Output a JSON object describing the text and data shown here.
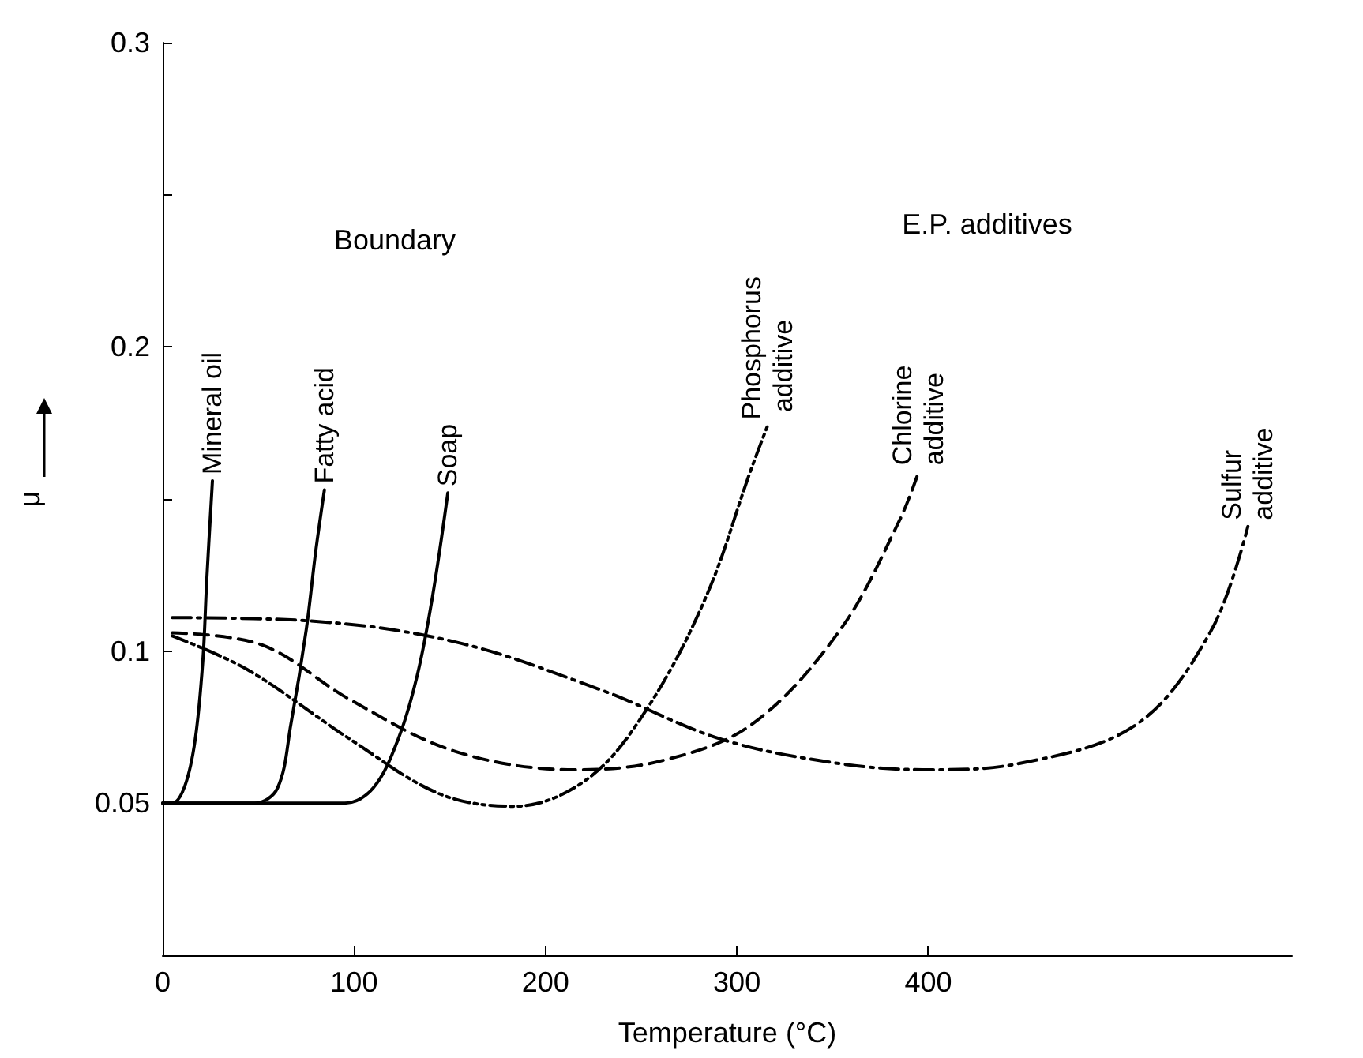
{
  "chart_data": {
    "type": "line",
    "xlabel": "Temperature (°C)",
    "ylabel": "μ",
    "xlim": [
      0,
      590
    ],
    "xticks": [
      0,
      100,
      200,
      300,
      400
    ],
    "ylim": [
      0,
      0.3
    ],
    "yticks": [
      0.05,
      0.1,
      {
        "value": 0.15,
        "label": null
      },
      0.2,
      {
        "value": 0.25,
        "label": null
      },
      0.3
    ],
    "grid": false,
    "legend": false,
    "marker": "none",
    "annotations": [
      "Boundary",
      "E.P. additives"
    ],
    "series": [
      {
        "name": "Mineral oil",
        "color": "#000000",
        "line_style": "solid",
        "x": [
          0,
          5,
          11.6,
          17,
          21,
          23,
          26
        ],
        "values": [
          0.05,
          0.05,
          0.0557,
          0.071,
          0.097,
          0.123,
          0.156
        ]
      },
      {
        "name": "Fatty acid",
        "color": "#000000",
        "line_style": "solid",
        "x": [
          0,
          48,
          60,
          67,
          75,
          80,
          84.5
        ],
        "values": [
          0.05,
          0.05,
          0.055,
          0.076,
          0.107,
          0.133,
          0.153
        ]
      },
      {
        "name": "Soap",
        "color": "#000000",
        "line_style": "solid",
        "x": [
          0,
          95,
          110,
          123,
          133,
          141,
          149
        ],
        "values": [
          0.05,
          0.05,
          0.055,
          0.071,
          0.092,
          0.118,
          0.152
        ]
      },
      {
        "name": "Phosphorus additive",
        "color": "#000000",
        "line_style": "dashdotdot",
        "x": [
          5,
          44,
          98,
          145,
          184,
          222,
          253,
          284,
          307,
          316
        ],
        "values": [
          0.105,
          0.094,
          0.071,
          0.053,
          0.049,
          0.058,
          0.081,
          0.118,
          0.159,
          0.174
        ]
      },
      {
        "name": "Chlorine additive",
        "color": "#000000",
        "line_style": "dashed",
        "x": [
          5,
          52,
          98,
          153,
          215,
          261,
          308,
          354,
          385,
          395
        ],
        "values": [
          0.106,
          0.102,
          0.084,
          0.067,
          0.061,
          0.064,
          0.076,
          0.107,
          0.143,
          0.159
        ]
      },
      {
        "name": "Sulfur additive",
        "color": "#000000",
        "line_style": "dashdot",
        "x": [
          5,
          75,
          153,
          230,
          292,
          354,
          401,
          447,
          509,
          548,
          567
        ],
        "values": [
          0.111,
          0.11,
          0.103,
          0.087,
          0.071,
          0.063,
          0.061,
          0.063,
          0.076,
          0.107,
          0.141
        ]
      }
    ]
  }
}
